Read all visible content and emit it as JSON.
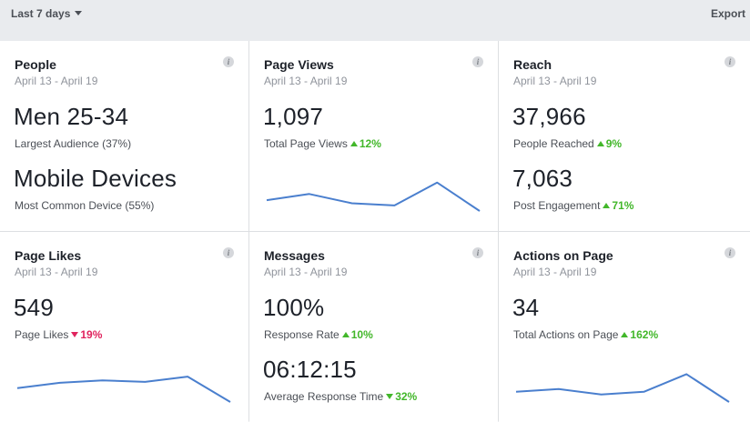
{
  "topbar": {
    "range_label": "Last 7 days",
    "export_label": "Export"
  },
  "colors": {
    "positive": "#42b72a",
    "negative": "#e0245e",
    "line": "#4a7fce"
  },
  "cards": {
    "people": {
      "title": "People",
      "date": "April 13 - April 19",
      "primary": {
        "value": "Men 25-34",
        "label": "Largest Audience (37%)"
      },
      "secondary": {
        "value": "Mobile Devices",
        "label": "Most Common Device (55%)"
      }
    },
    "page_views": {
      "title": "Page Views",
      "date": "April 13 - April 19",
      "value": "1,097",
      "label": "Total Page Views",
      "change": "12%",
      "direction": "up",
      "trend": [
        0.35,
        0.55,
        0.25,
        0.18,
        0.92,
        0.0
      ]
    },
    "reach": {
      "title": "Reach",
      "date": "April 13 - April 19",
      "primary": {
        "value": "37,966",
        "label": "People Reached",
        "change": "9%",
        "direction": "up"
      },
      "secondary": {
        "value": "7,063",
        "label": "Post Engagement",
        "change": "71%",
        "direction": "up"
      }
    },
    "page_likes": {
      "title": "Page Likes",
      "date": "April 13 - April 19",
      "value": "549",
      "label": "Page Likes",
      "change": "19%",
      "direction": "down",
      "trend": [
        0.45,
        0.62,
        0.7,
        0.65,
        0.82,
        0.0
      ]
    },
    "messages": {
      "title": "Messages",
      "date": "April 13 - April 19",
      "primary": {
        "value": "100%",
        "label": "Response Rate",
        "change": "10%",
        "direction": "up"
      },
      "secondary": {
        "value": "06:12:15",
        "label": "Average Response Time",
        "change": "32%",
        "direction": "down_good"
      }
    },
    "actions": {
      "title": "Actions on Page",
      "date": "April 13 - April 19",
      "value": "34",
      "label": "Total Actions on Page",
      "change": "162%",
      "direction": "up",
      "trend": [
        0.33,
        0.42,
        0.24,
        0.33,
        0.9,
        0.0
      ]
    }
  }
}
